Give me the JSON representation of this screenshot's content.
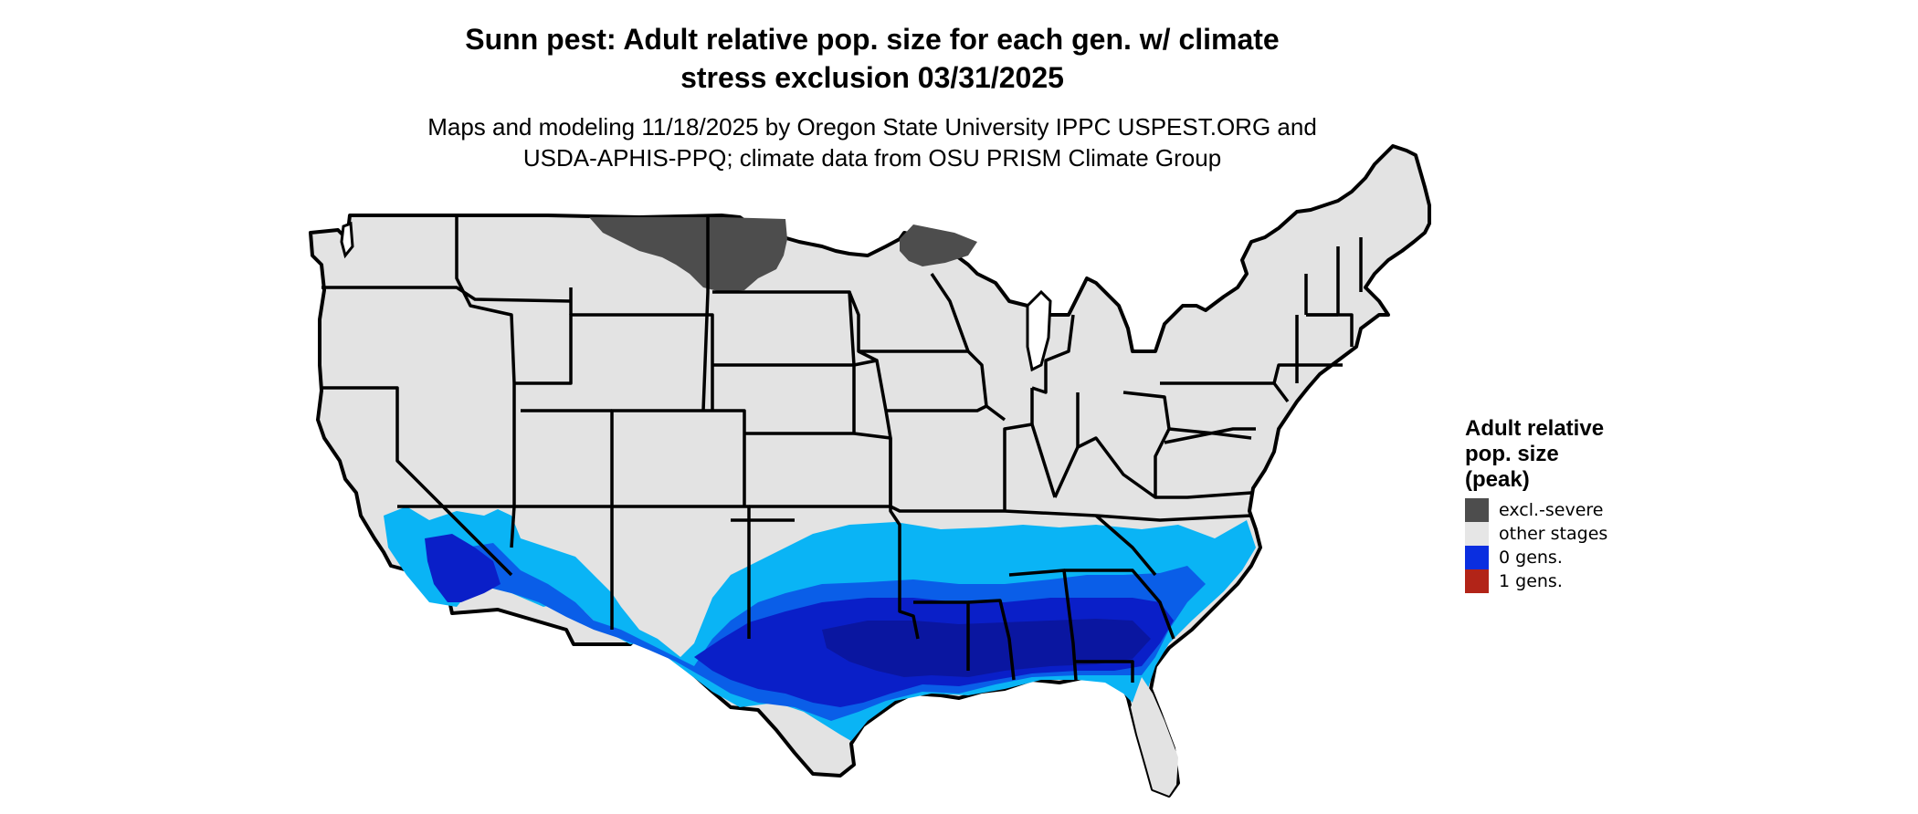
{
  "title": {
    "line1": "Sunn pest: Adult relative pop. size for each gen. w/ climate",
    "line2": "stress exclusion 03/31/2025"
  },
  "subtitle": {
    "line1": "Maps and modeling 11/18/2025 by Oregon State University IPPC USPEST.ORG and",
    "line2": "USDA-APHIS-PPQ; climate data from OSU PRISM Climate Group"
  },
  "legend": {
    "title_lines": [
      "Adult relative",
      "pop. size",
      "(peak)"
    ],
    "items": [
      {
        "label": "excl.-severe",
        "color": "#4d4d4d"
      },
      {
        "label": "other stages",
        "color": "#e6e6e6"
      },
      {
        "label": "0 gens.",
        "color": "#0a2ee0"
      },
      {
        "label": "1 gens.",
        "color": "#b22418"
      }
    ]
  },
  "colors": {
    "land": "#e3e3e3",
    "excluded": "#4d4d4d",
    "light_blue": "#0ab4f5",
    "mid_blue": "#0a5ee8",
    "dark_blue": "#0a1fc8",
    "navy": "#0a16a0",
    "border": "#000000"
  }
}
